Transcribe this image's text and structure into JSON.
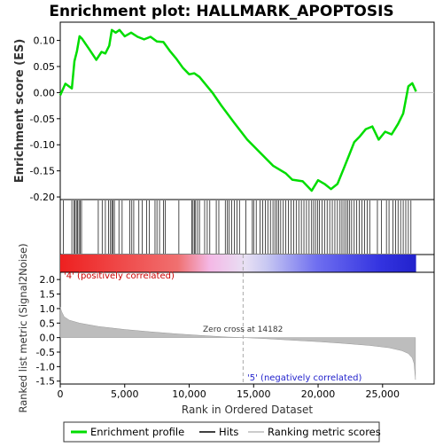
{
  "chart_data": {
    "type": "line",
    "title": "Enrichment plot: HALLMARK_APOPTOSIS",
    "top_panel": {
      "ylabel": "Enrichment score (ES)",
      "ylim": [
        -0.205,
        0.135
      ],
      "yticks": [
        0.1,
        0.05,
        0.0,
        -0.05,
        -0.1,
        -0.15,
        -0.2
      ],
      "ytick_labels": [
        "0.10",
        "0.05",
        "0.00",
        "-0.05",
        "-0.10",
        "-0.15",
        "-0.20"
      ],
      "series": [
        {
          "name": "Enrichment profile",
          "color": "#00dd00",
          "x": [
            0,
            400,
            900,
            1100,
            1300,
            1500,
            1700,
            2200,
            2800,
            3200,
            3500,
            3800,
            4000,
            4300,
            4600,
            5000,
            5500,
            6000,
            6500,
            7000,
            7500,
            8000,
            8500,
            9000,
            9500,
            10000,
            10400,
            10800,
            11300,
            11800,
            12500,
            13500,
            14500,
            15500,
            16500,
            17500,
            18000,
            18800,
            19500,
            20000,
            20500,
            21000,
            21500,
            22000,
            22400,
            22800,
            23200,
            23700,
            24200,
            24700,
            25200,
            25700,
            26200,
            26600,
            27000,
            27300,
            27600
          ],
          "y": [
            -0.005,
            0.017,
            0.008,
            0.06,
            0.08,
            0.108,
            0.103,
            0.085,
            0.063,
            0.078,
            0.075,
            0.09,
            0.12,
            0.115,
            0.12,
            0.108,
            0.115,
            0.107,
            0.102,
            0.107,
            0.098,
            0.097,
            0.08,
            0.065,
            0.048,
            0.035,
            0.037,
            0.03,
            0.015,
            0.0,
            -0.025,
            -0.058,
            -0.09,
            -0.115,
            -0.14,
            -0.155,
            -0.167,
            -0.17,
            -0.188,
            -0.168,
            -0.175,
            -0.185,
            -0.175,
            -0.145,
            -0.12,
            -0.095,
            -0.085,
            -0.07,
            -0.065,
            -0.09,
            -0.075,
            -0.08,
            -0.06,
            -0.04,
            0.012,
            0.018,
            0.002
          ]
        }
      ]
    },
    "hits_panel": {
      "hit_positions": [
        250,
        900,
        1050,
        1150,
        1250,
        1350,
        1450,
        1550,
        1650,
        2950,
        3250,
        3500,
        3750,
        3900,
        4000,
        4100,
        4200,
        4550,
        4800,
        5400,
        5550,
        5700,
        6100,
        6350,
        6700,
        6900,
        7350,
        7500,
        7700,
        8000,
        8150,
        9200,
        10200,
        10300,
        10400,
        10500,
        10650,
        10800,
        11200,
        11400,
        11600,
        12100,
        12300,
        12800,
        12950,
        13100,
        13300,
        13500,
        13700,
        13900,
        14400,
        14900,
        15000,
        15200,
        15500,
        15700,
        15900,
        16100,
        16300,
        16500,
        16650,
        16800,
        16950,
        17100,
        17300,
        17500,
        17700,
        17900,
        18100,
        18300,
        18500,
        18700,
        18900,
        19100,
        19300,
        19500,
        19650,
        19800,
        19950,
        20100,
        20300,
        20500,
        20700,
        20900,
        21100,
        21300,
        21500,
        21700,
        21850,
        22000,
        22150,
        22300,
        22450,
        22600,
        22800,
        23000,
        23200,
        23400,
        23600,
        23800,
        24000,
        24600,
        24900,
        25300,
        25500,
        25800,
        26000,
        26200,
        26400,
        26600,
        26800,
        27000,
        27200
      ]
    },
    "bottom_panel": {
      "ylabel": "Ranked list metric (Signal2Noise)",
      "xlabel": "Rank in Ordered Dataset",
      "xlim": [
        0,
        29000
      ],
      "xticks": [
        0,
        5000,
        10000,
        15000,
        20000,
        25000
      ],
      "xtick_labels": [
        "0",
        "5,000",
        "10,000",
        "15,000",
        "20,000",
        "25,000"
      ],
      "ylim": [
        -1.6,
        2.25
      ],
      "yticks": [
        2.0,
        1.5,
        1.0,
        0.5,
        0.0,
        -0.5,
        -1.0,
        -1.5
      ],
      "ytick_labels": [
        "2.0",
        "1.5",
        "1.0",
        "0.5",
        "0.0",
        "-0.5",
        "-1.0",
        "-1.5"
      ],
      "metric_x": [
        0,
        100,
        300,
        700,
        1500,
        3000,
        5000,
        7000,
        9000,
        11000,
        13000,
        14182,
        16000,
        18000,
        20000,
        22000,
        24000,
        25500,
        26500,
        27000,
        27300,
        27450,
        27550
      ],
      "metric_y": [
        1.05,
        0.9,
        0.72,
        0.6,
        0.5,
        0.38,
        0.28,
        0.2,
        0.13,
        0.07,
        0.02,
        0.0,
        -0.04,
        -0.09,
        -0.14,
        -0.2,
        -0.27,
        -0.35,
        -0.45,
        -0.55,
        -0.7,
        -0.9,
        -1.45
      ],
      "zero_cross": 14182,
      "total_rank": 27600,
      "annotations": {
        "pos_label": "'4' (positively correlated)",
        "neg_label": "'5' (negatively correlated)",
        "zero_label": "Zero cross at 14182"
      }
    },
    "legend": {
      "placement": "bottom",
      "items": [
        {
          "label": "Enrichment profile",
          "color": "#00dd00",
          "kind": "line"
        },
        {
          "label": "Hits",
          "color": "#000000",
          "kind": "line"
        },
        {
          "label": "Ranking metric scores",
          "color": "#bbbbbb",
          "kind": "line"
        }
      ]
    }
  }
}
